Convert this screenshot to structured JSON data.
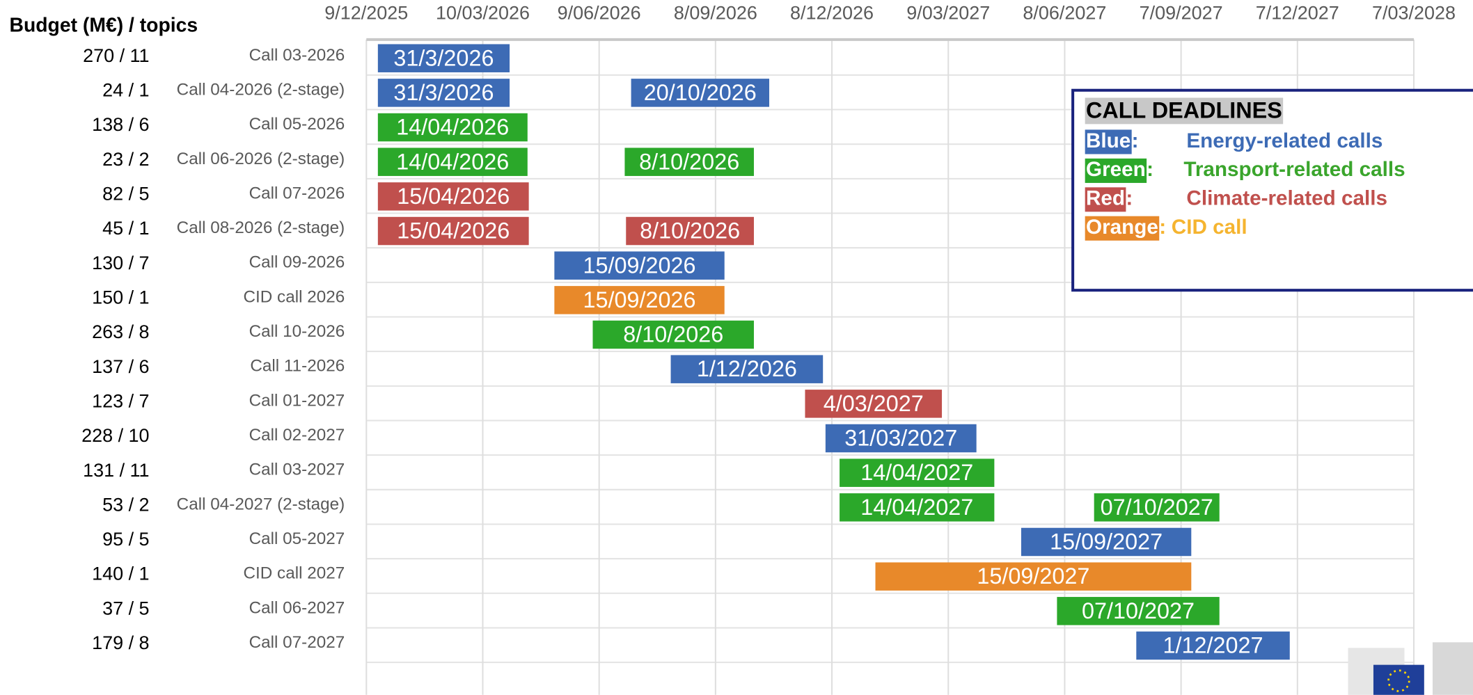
{
  "chart_data": {
    "type": "gantt",
    "row_header": "Budget (M€) / topics",
    "xlim": [
      "2025-12-09",
      "2028-03-07"
    ],
    "xticks": [
      {
        "value": "2025-12-09",
        "label": "9/12/2025"
      },
      {
        "value": "2026-03-10",
        "label": "10/03/2026"
      },
      {
        "value": "2026-06-09",
        "label": "9/06/2026"
      },
      {
        "value": "2026-09-08",
        "label": "8/09/2026"
      },
      {
        "value": "2026-12-08",
        "label": "8/12/2026"
      },
      {
        "value": "2027-03-09",
        "label": "9/03/2027"
      },
      {
        "value": "2027-06-08",
        "label": "8/06/2027"
      },
      {
        "value": "2027-09-07",
        "label": "7/09/2027"
      },
      {
        "value": "2027-12-07",
        "label": "7/12/2027"
      },
      {
        "value": "2028-03-07",
        "label": "7/03/2028"
      }
    ],
    "grid": true,
    "rows": [
      {
        "budget": "270 / 11",
        "name": "Call 03-2026",
        "bars": [
          {
            "start": "2025-12-18",
            "end": "2026-03-31",
            "label": "31/3/2026",
            "color": "#3d6bb5"
          }
        ]
      },
      {
        "budget": "24 / 1",
        "name": "Call 04-2026 (2-stage)",
        "bars": [
          {
            "start": "2025-12-18",
            "end": "2026-03-31",
            "label": "31/3/2026",
            "color": "#3d6bb5"
          },
          {
            "start": "2026-07-04",
            "end": "2026-10-20",
            "label": "20/10/2026",
            "color": "#3d6bb5"
          }
        ]
      },
      {
        "budget": "138 / 6",
        "name": "Call 05-2026",
        "bars": [
          {
            "start": "2025-12-18",
            "end": "2026-04-14",
            "label": "14/04/2026",
            "color": "#2ba82a"
          }
        ]
      },
      {
        "budget": "23 / 2",
        "name": "Call 06-2026 (2-stage)",
        "bars": [
          {
            "start": "2025-12-18",
            "end": "2026-04-14",
            "label": "14/04/2026",
            "color": "#2ba82a"
          },
          {
            "start": "2026-06-29",
            "end": "2026-10-08",
            "label": "8/10/2026",
            "color": "#2ba82a"
          }
        ]
      },
      {
        "budget": "82 / 5",
        "name": "Call 07-2026",
        "bars": [
          {
            "start": "2025-12-18",
            "end": "2026-04-15",
            "label": "15/04/2026",
            "color": "#c0504d"
          }
        ]
      },
      {
        "budget": "45 / 1",
        "name": "Call 08-2026 (2-stage)",
        "bars": [
          {
            "start": "2025-12-18",
            "end": "2026-04-15",
            "label": "15/04/2026",
            "color": "#c0504d"
          },
          {
            "start": "2026-06-30",
            "end": "2026-10-08",
            "label": "8/10/2026",
            "color": "#c0504d"
          }
        ]
      },
      {
        "budget": "130 / 7",
        "name": "Call 09-2026",
        "bars": [
          {
            "start": "2026-05-05",
            "end": "2026-09-15",
            "label": "15/09/2026",
            "color": "#3d6bb5"
          }
        ]
      },
      {
        "budget": "150 / 1",
        "name": "CID call 2026",
        "bars": [
          {
            "start": "2026-05-05",
            "end": "2026-09-15",
            "label": "15/09/2026",
            "color": "#e8892a"
          }
        ]
      },
      {
        "budget": "263 / 8",
        "name": "Call 10-2026",
        "bars": [
          {
            "start": "2026-06-04",
            "end": "2026-10-08",
            "label": "8/10/2026",
            "color": "#2ba82a"
          }
        ]
      },
      {
        "budget": "137 / 6",
        "name": "Call 11-2026",
        "bars": [
          {
            "start": "2026-08-04",
            "end": "2026-12-01",
            "label": "1/12/2026",
            "color": "#3d6bb5"
          }
        ]
      },
      {
        "budget": "123 / 7",
        "name": "Call 01-2027",
        "bars": [
          {
            "start": "2026-11-17",
            "end": "2027-03-04",
            "label": "4/03/2027",
            "color": "#c0504d"
          }
        ]
      },
      {
        "budget": "228 / 10",
        "name": "Call 02-2027",
        "bars": [
          {
            "start": "2026-12-03",
            "end": "2027-03-31",
            "label": "31/03/2027",
            "color": "#3d6bb5"
          }
        ]
      },
      {
        "budget": "131 / 11",
        "name": "Call 03-2027",
        "bars": [
          {
            "start": "2026-12-14",
            "end": "2027-04-14",
            "label": "14/04/2027",
            "color": "#2ba82a"
          }
        ]
      },
      {
        "budget": "53 / 2",
        "name": "Call 04-2027 (2-stage)",
        "bars": [
          {
            "start": "2026-12-14",
            "end": "2027-04-14",
            "label": "14/04/2027",
            "color": "#2ba82a"
          },
          {
            "start": "2027-07-01",
            "end": "2027-10-07",
            "label": "07/10/2027",
            "color": "#2ba82a"
          }
        ]
      },
      {
        "budget": "95 / 5",
        "name": "Call 05-2027",
        "bars": [
          {
            "start": "2027-05-05",
            "end": "2027-09-15",
            "label": "15/09/2027",
            "color": "#3d6bb5"
          }
        ]
      },
      {
        "budget": "140 / 1",
        "name": "CID call 2027",
        "bars": [
          {
            "start": "2027-01-11",
            "end": "2027-09-15",
            "label": "15/09/2027",
            "color": "#e8892a"
          }
        ]
      },
      {
        "budget": "37 / 5",
        "name": "Call 06-2027",
        "bars": [
          {
            "start": "2027-06-02",
            "end": "2027-10-07",
            "label": "07/10/2027",
            "color": "#2ba82a"
          }
        ]
      },
      {
        "budget": "179 / 8",
        "name": "Call 07-2027",
        "bars": [
          {
            "start": "2027-08-03",
            "end": "2027-12-01",
            "label": "1/12/2027",
            "color": "#3d6bb5"
          }
        ]
      }
    ],
    "legend": {
      "title": "CALL DEADLINES",
      "entries": [
        {
          "key": "Blue",
          "separator": ":",
          "text": "Energy-related calls",
          "color": "#3d6bb5",
          "text_color": "#3d6bb5"
        },
        {
          "key": "Green",
          "separator": ":",
          "text": "Transport-related calls",
          "color": "#2ba82a",
          "text_color": "#3aa52c"
        },
        {
          "key": "Red",
          "separator": ":",
          "text": "Climate-related calls",
          "color": "#c0504d",
          "text_color": "#c0504d"
        },
        {
          "key": "Orange",
          "separator": ":",
          "text": "CID call",
          "color": "#e8892a",
          "text_color": "#f5b42f"
        }
      ]
    }
  }
}
